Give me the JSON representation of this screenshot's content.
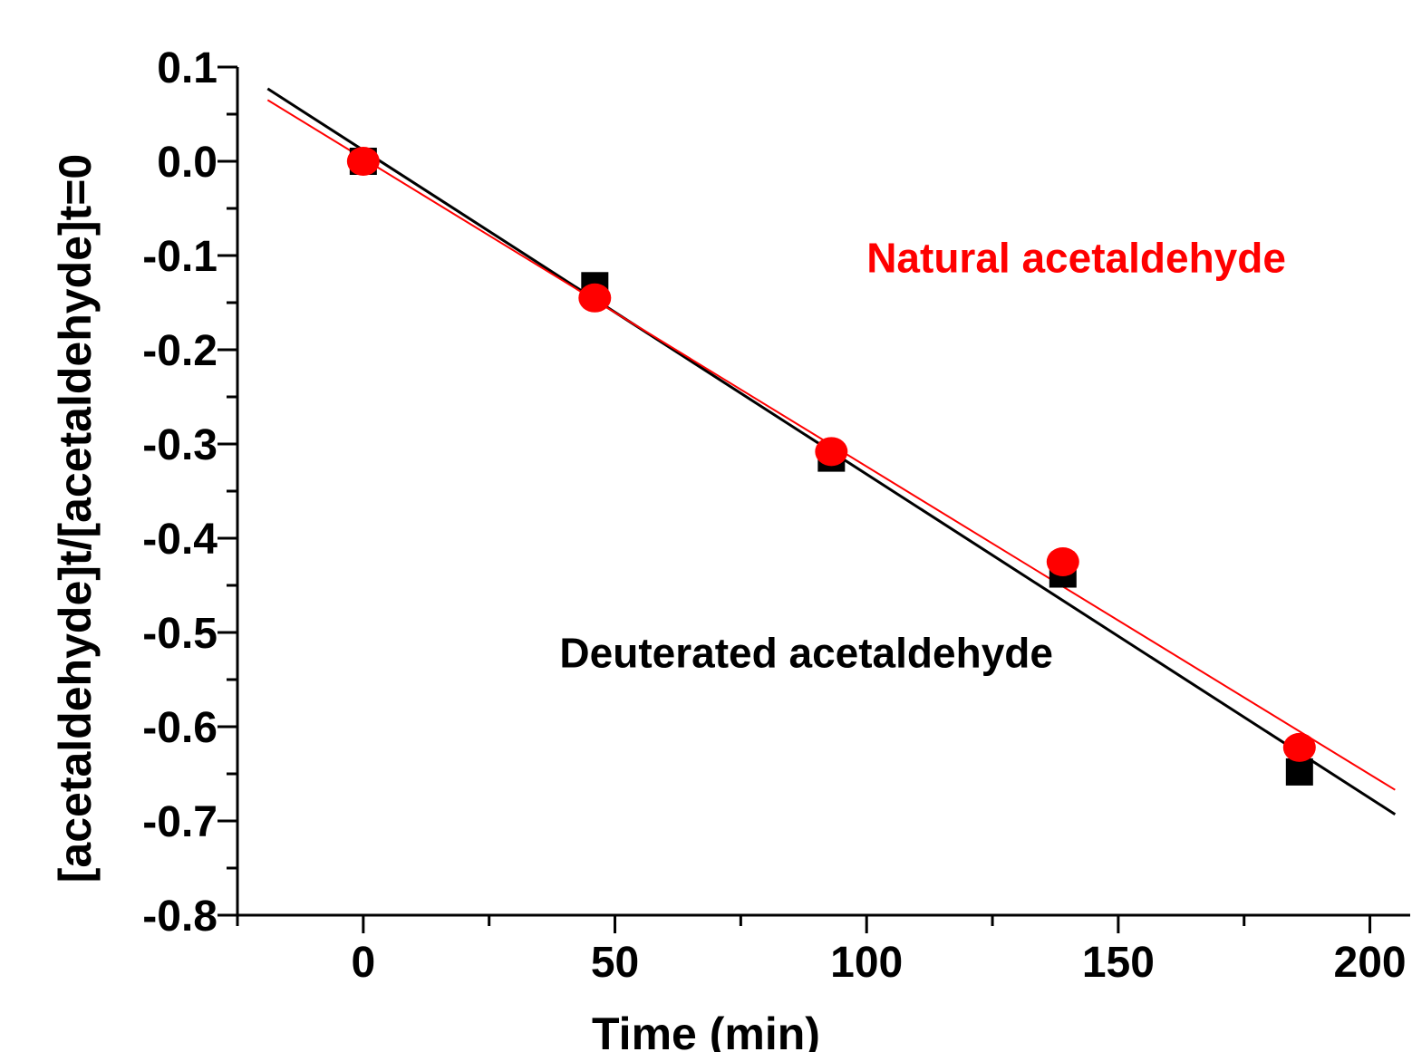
{
  "chart_data": {
    "type": "scatter",
    "xlabel": "Time (min)",
    "ylabel": "[acetaldehyde]t/[acetaldehyde]t=0",
    "xlim": [
      -25,
      208
    ],
    "ylim": [
      -0.8,
      0.1
    ],
    "xticks": [
      0,
      50,
      100,
      150,
      200
    ],
    "xtick_labels": [
      "0",
      "50",
      "100",
      "150",
      "200"
    ],
    "yticks": [
      0.1,
      0.0,
      -0.1,
      -0.2,
      -0.3,
      -0.4,
      -0.5,
      -0.6,
      -0.7,
      -0.8
    ],
    "ytick_labels": [
      "0.1",
      "0.0",
      "-0.1",
      "-0.2",
      "-0.3",
      "-0.4",
      "-0.5",
      "-0.6",
      "-0.7",
      "-0.8"
    ],
    "grid": false,
    "series": [
      {
        "name": "Deuterated acetaldehyde",
        "color": "#000000",
        "marker": "square",
        "x": [
          0,
          46,
          93,
          139,
          186
        ],
        "y": [
          0.0,
          -0.132,
          -0.315,
          -0.438,
          -0.648
        ],
        "fit_line": {
          "x": [
            -19,
            205
          ],
          "y": [
            0.077,
            -0.693
          ]
        }
      },
      {
        "name": "Natural acetaldehyde",
        "color": "#ff0000",
        "marker": "circle",
        "x": [
          0,
          46,
          93,
          139,
          186
        ],
        "y": [
          0.0,
          -0.145,
          -0.308,
          -0.425,
          -0.622
        ],
        "fit_line": {
          "x": [
            -19,
            205
          ],
          "y": [
            0.065,
            -0.667
          ]
        }
      }
    ],
    "annotations": [
      {
        "text": "Natural acetaldehyde",
        "color": "#ff0000",
        "x": 100,
        "y": -0.118
      },
      {
        "text": "Deuterated acetaldehyde",
        "color": "#000000",
        "x": 39,
        "y": -0.537
      }
    ]
  }
}
